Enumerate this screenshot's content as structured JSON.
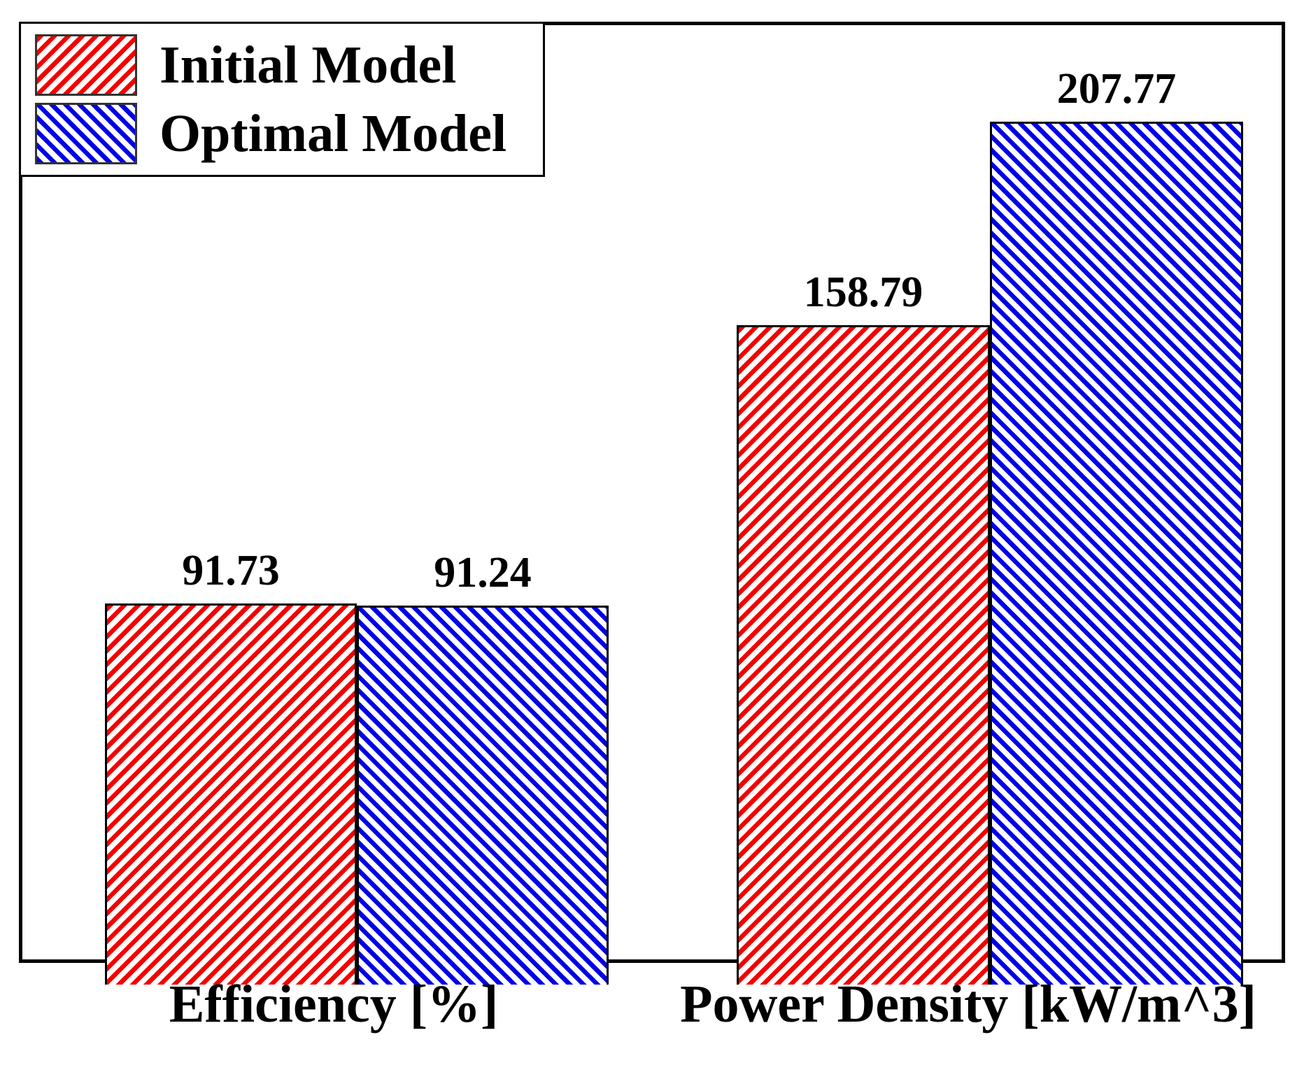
{
  "chart_data": {
    "type": "bar",
    "title": "",
    "categories": [
      "Efficiency [%]",
      "Power Density [kW/m^3]"
    ],
    "series": [
      {
        "name": "Initial Model",
        "values": [
          91.73,
          158.79
        ],
        "color": "#f40000",
        "hatch": "///"
      },
      {
        "name": "Optimal Model",
        "values": [
          91.24,
          207.77
        ],
        "color": "#0000e6",
        "hatch": "\\\\\\"
      }
    ],
    "value_labels": {
      "initial_model": [
        "91.73",
        "158.79"
      ],
      "optimal_model": [
        "91.24",
        "207.77"
      ]
    },
    "xlabel": "",
    "ylabel": "",
    "ylim": [
      0,
      225
    ],
    "y_axis_ticks_visible": false,
    "grid": false,
    "legend_position": "upper-left",
    "bar_label_decimals": 2
  },
  "legend": {
    "items": [
      {
        "label": "Initial Model",
        "swatch": "red-forward-diagonal-hatch"
      },
      {
        "label": "Optimal Model",
        "swatch": "blue-backward-diagonal-hatch"
      }
    ]
  },
  "colors": {
    "initial_model": "#f40000",
    "optimal_model": "#0000e6",
    "text": "#000000",
    "frame": "#000000",
    "background": "#ffffff"
  }
}
